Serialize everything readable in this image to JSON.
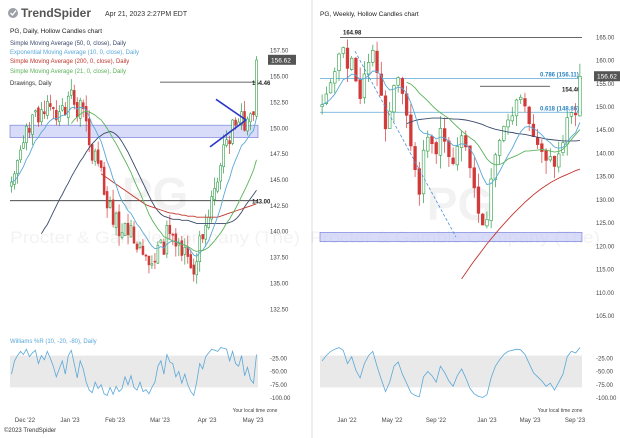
{
  "header": {
    "logo_text": "TrendSpider",
    "timestamp": "Apr 21, 2023 2:27PM EDT"
  },
  "watermark": {
    "ticker": "PG",
    "company": "Procter & Gamble Company (The)"
  },
  "copyright": "©2023 TrendSpider",
  "colors": {
    "up": "#2e9d47",
    "down": "#d23a3a",
    "sma50": "#3b4a6b",
    "ema10": "#5aa8d8",
    "sma200": "#c0362c",
    "sma21": "#5ab25a",
    "zone": "#c8cdf5"
  },
  "chart_data": [
    {
      "type": "candlestick",
      "title": "PG, Daily, Hollow Candles chart",
      "legend": [
        {
          "name": "Simple Moving Average (50, 0, close), Daily",
          "color": "#3b4a6b"
        },
        {
          "name": "Exponential Moving Average (10, 0, close), Daily",
          "color": "#5aa8d8"
        },
        {
          "name": "Simple Moving Average (200, 0, close), Daily",
          "color": "#c0362c"
        },
        {
          "name": "Simple Moving Average (21, 0, close), Daily",
          "color": "#5ab25a"
        },
        {
          "name": "Drawings, Daily",
          "color": "#333333"
        }
      ],
      "x_ticks": [
        "Dec '22",
        "Jan '23",
        "Feb '23",
        "Mar '23",
        "Apr '23",
        "May '23"
      ],
      "y_ticks": [
        157.5,
        155.0,
        152.5,
        150.0,
        147.5,
        145.0,
        142.5,
        140.0,
        137.5,
        135.0,
        132.5
      ],
      "ylim": [
        130.5,
        159.5
      ],
      "last_price": "156.62",
      "levels": [
        {
          "label": "154.46",
          "value": 154.46
        },
        {
          "label": "143.00",
          "value": 143.0
        }
      ],
      "zone": [
        149.1,
        150.3
      ],
      "closes": [
        144.8,
        145.6,
        146.9,
        147.9,
        148.6,
        150.2,
        149.6,
        151.3,
        151.7,
        150.6,
        151.8,
        151.4,
        152.6,
        152.1,
        151.9,
        150.8,
        151.6,
        152.2,
        151.3,
        153.1,
        153.7,
        152.3,
        151.1,
        152.7,
        151.9,
        150.7,
        148.4,
        146.9,
        147.8,
        146.6,
        146.2,
        143.6,
        142.3,
        142.9,
        140.7,
        141.8,
        139.6,
        139.9,
        140.8,
        139.7,
        140.6,
        138.9,
        138.3,
        138.9,
        137.8,
        137.7,
        136.8,
        136.9,
        137.1,
        138.7,
        139.2,
        137.8,
        140.6,
        139.8,
        139.7,
        138.6,
        138.9,
        137.7,
        138.5,
        137.6,
        136.5,
        135.9,
        137.1,
        139.6,
        139.3,
        140.6,
        141.4,
        143.4,
        144.2,
        144.8,
        146.4,
        148.4,
        148.9,
        148.5,
        150.8,
        150.3,
        150.6,
        151.6,
        149.8,
        150.9,
        151.4,
        151.3,
        156.6
      ],
      "sma50": [
        null,
        null,
        null,
        null,
        null,
        null,
        null,
        null,
        null,
        null,
        139.8,
        140.3,
        140.7,
        141.3,
        141.9,
        142.5,
        143.1,
        143.6,
        144.2,
        144.7,
        145.3,
        145.8,
        146.3,
        146.8,
        147.2,
        147.7,
        148.1,
        148.5,
        148.8,
        149.1,
        149.3,
        149.5,
        149.6,
        149.7,
        149.6,
        149.4,
        149.1,
        148.7,
        148.2,
        147.7,
        147.1,
        146.5,
        145.9,
        145.3,
        144.7,
        144.1,
        143.5,
        142.9,
        142.4,
        142.0,
        141.7,
        141.5,
        141.4,
        141.3,
        141.2,
        141.2,
        141.2,
        141.1,
        141.1,
        141.1,
        141.0,
        140.9,
        140.8,
        140.8,
        140.8,
        140.8,
        140.8,
        140.8,
        140.8,
        140.8,
        140.8,
        140.8,
        140.8,
        140.9,
        141.0,
        141.2,
        141.5,
        141.9,
        142.4,
        142.8,
        143.2,
        143.6,
        144.0
      ],
      "sma200": [
        null,
        null,
        null,
        null,
        null,
        null,
        null,
        null,
        null,
        null,
        null,
        null,
        null,
        null,
        null,
        null,
        null,
        null,
        null,
        null,
        null,
        null,
        null,
        null,
        null,
        null,
        null,
        null,
        null,
        null,
        145.6,
        145.4,
        145.2,
        145.0,
        144.8,
        144.6,
        144.4,
        144.2,
        144.0,
        143.8,
        143.6,
        143.4,
        143.2,
        143.0,
        142.8,
        142.6,
        142.5,
        142.4,
        142.3,
        142.2,
        142.1,
        142.0,
        141.9,
        141.8,
        141.8,
        141.7,
        141.7,
        141.6,
        141.6,
        141.5,
        141.5,
        141.5,
        141.4,
        141.4,
        141.4,
        141.4,
        141.4,
        141.4,
        141.4,
        141.4,
        141.5,
        141.6,
        141.7,
        141.8,
        141.9,
        142.0,
        142.1,
        142.2,
        142.3,
        142.4,
        142.5,
        142.6,
        142.7
      ],
      "williams": {
        "label": "Williams %R (10, -20, -80), Daily",
        "y_ticks": [
          -25.0,
          -50.0,
          -75.0,
          -100.0
        ],
        "ylim": [
          -100,
          0
        ],
        "band": [
          -80,
          -20
        ],
        "values": [
          -55,
          -30,
          -20,
          -12,
          -18,
          -8,
          -22,
          -15,
          -10,
          -35,
          -20,
          -28,
          -12,
          -25,
          -40,
          -60,
          -45,
          -30,
          -55,
          -20,
          -10,
          -35,
          -62,
          -30,
          -45,
          -70,
          -85,
          -90,
          -70,
          -82,
          -75,
          -92,
          -95,
          -80,
          -93,
          -78,
          -88,
          -82,
          -60,
          -75,
          -58,
          -80,
          -85,
          -70,
          -88,
          -84,
          -92,
          -80,
          -70,
          -40,
          -30,
          -55,
          -18,
          -32,
          -35,
          -60,
          -50,
          -72,
          -55,
          -75,
          -88,
          -95,
          -70,
          -35,
          -45,
          -22,
          -15,
          -8,
          -10,
          -12,
          -5,
          -6,
          -8,
          -30,
          -12,
          -35,
          -40,
          -20,
          -58,
          -42,
          -65,
          -72,
          -18
        ]
      },
      "x_axis_note": "Your local time zone"
    },
    {
      "type": "candlestick",
      "title": "PG, Weekly, Hollow Candles chart",
      "x_ticks": [
        "Jan '22",
        "May '22",
        "Sep '22",
        "Jan '23",
        "May '23",
        "Sep '23"
      ],
      "y_ticks": [
        165.0,
        160.0,
        155.0,
        150.0,
        145.0,
        140.0,
        135.0,
        130.0,
        125.0,
        120.0,
        115.0,
        110.0,
        105.0
      ],
      "ylim": [
        102,
        167
      ],
      "last_price": "156.62",
      "levels": [
        {
          "label": "164.98",
          "value": 164.98
        },
        {
          "label": "0.786 (156.11)",
          "value": 156.11
        },
        {
          "label": "154.46",
          "value": 154.46
        },
        {
          "label": "0.618 (148.86)",
          "value": 148.86
        }
      ],
      "zone": [
        121.0,
        123.0
      ],
      "closes": [
        150.5,
        152.8,
        155.2,
        157.6,
        161.4,
        162.8,
        158.3,
        160.5,
        155.6,
        151.8,
        157.1,
        159.6,
        162.2,
        157.4,
        152.5,
        145.3,
        149.1,
        154.6,
        156.3,
        152.9,
        148.2,
        141.6,
        136.5,
        131.2,
        140.7,
        143.5,
        142.1,
        139.9,
        145.4,
        142.6,
        139.3,
        137.8,
        141.5,
        143.8,
        141.4,
        136.9,
        132.6,
        127.1,
        124.6,
        125.8,
        134.5,
        139.7,
        142.8,
        145.8,
        147.2,
        148.1,
        151.5,
        152.1,
        150.2,
        146.4,
        143.6,
        141.9,
        140.4,
        138.5,
        139.3,
        137.2,
        139.9,
        142.3,
        147.7,
        148.8,
        148.3,
        156.6
      ],
      "sma50": [
        null,
        null,
        null,
        null,
        null,
        null,
        null,
        null,
        null,
        null,
        null,
        null,
        null,
        null,
        null,
        null,
        null,
        null,
        null,
        null,
        146.4,
        146.8,
        147.1,
        147.3,
        147.4,
        147.5,
        147.6,
        147.6,
        147.6,
        147.5,
        147.5,
        147.4,
        147.4,
        147.3,
        147.2,
        147.0,
        146.8,
        146.5,
        146.2,
        145.8,
        145.5,
        145.2,
        145.0,
        144.8,
        144.6,
        144.5,
        144.3,
        144.2,
        144.1,
        143.9,
        143.7,
        143.5,
        143.3,
        143.1,
        143.0,
        142.9,
        142.8,
        142.7,
        142.7,
        142.7,
        142.7,
        142.8
      ],
      "sma200": [
        null,
        null,
        null,
        null,
        null,
        null,
        null,
        null,
        null,
        null,
        null,
        null,
        null,
        null,
        null,
        null,
        null,
        null,
        null,
        null,
        null,
        null,
        null,
        null,
        null,
        null,
        null,
        null,
        null,
        null,
        null,
        null,
        null,
        113.0,
        114.3,
        115.6,
        116.9,
        118.1,
        119.3,
        120.5,
        121.6,
        122.7,
        123.8,
        124.8,
        125.8,
        126.8,
        127.7,
        128.6,
        129.5,
        130.3,
        131.1,
        131.8,
        132.5,
        133.1,
        133.7,
        134.2,
        134.7,
        135.1,
        135.5,
        135.9,
        136.3,
        136.6
      ],
      "williams": {
        "y_ticks": [
          -25.0,
          -50.0,
          -75.0,
          -100.0
        ],
        "ylim": [
          -100,
          0
        ],
        "band": [
          -80,
          -20
        ],
        "values": [
          -30,
          -20,
          -12,
          -8,
          -5,
          -10,
          -35,
          -22,
          -48,
          -62,
          -35,
          -20,
          -12,
          -40,
          -65,
          -88,
          -70,
          -40,
          -32,
          -55,
          -72,
          -90,
          -95,
          -98,
          -60,
          -50,
          -58,
          -70,
          -40,
          -52,
          -68,
          -78,
          -58,
          -45,
          -62,
          -82,
          -92,
          -97,
          -99,
          -94,
          -62,
          -40,
          -28,
          -18,
          -12,
          -10,
          -8,
          -9,
          -18,
          -35,
          -52,
          -60,
          -68,
          -78,
          -72,
          -85,
          -70,
          -55,
          -22,
          -12,
          -15,
          -5
        ]
      },
      "x_axis_note": "Your local time zone"
    }
  ]
}
